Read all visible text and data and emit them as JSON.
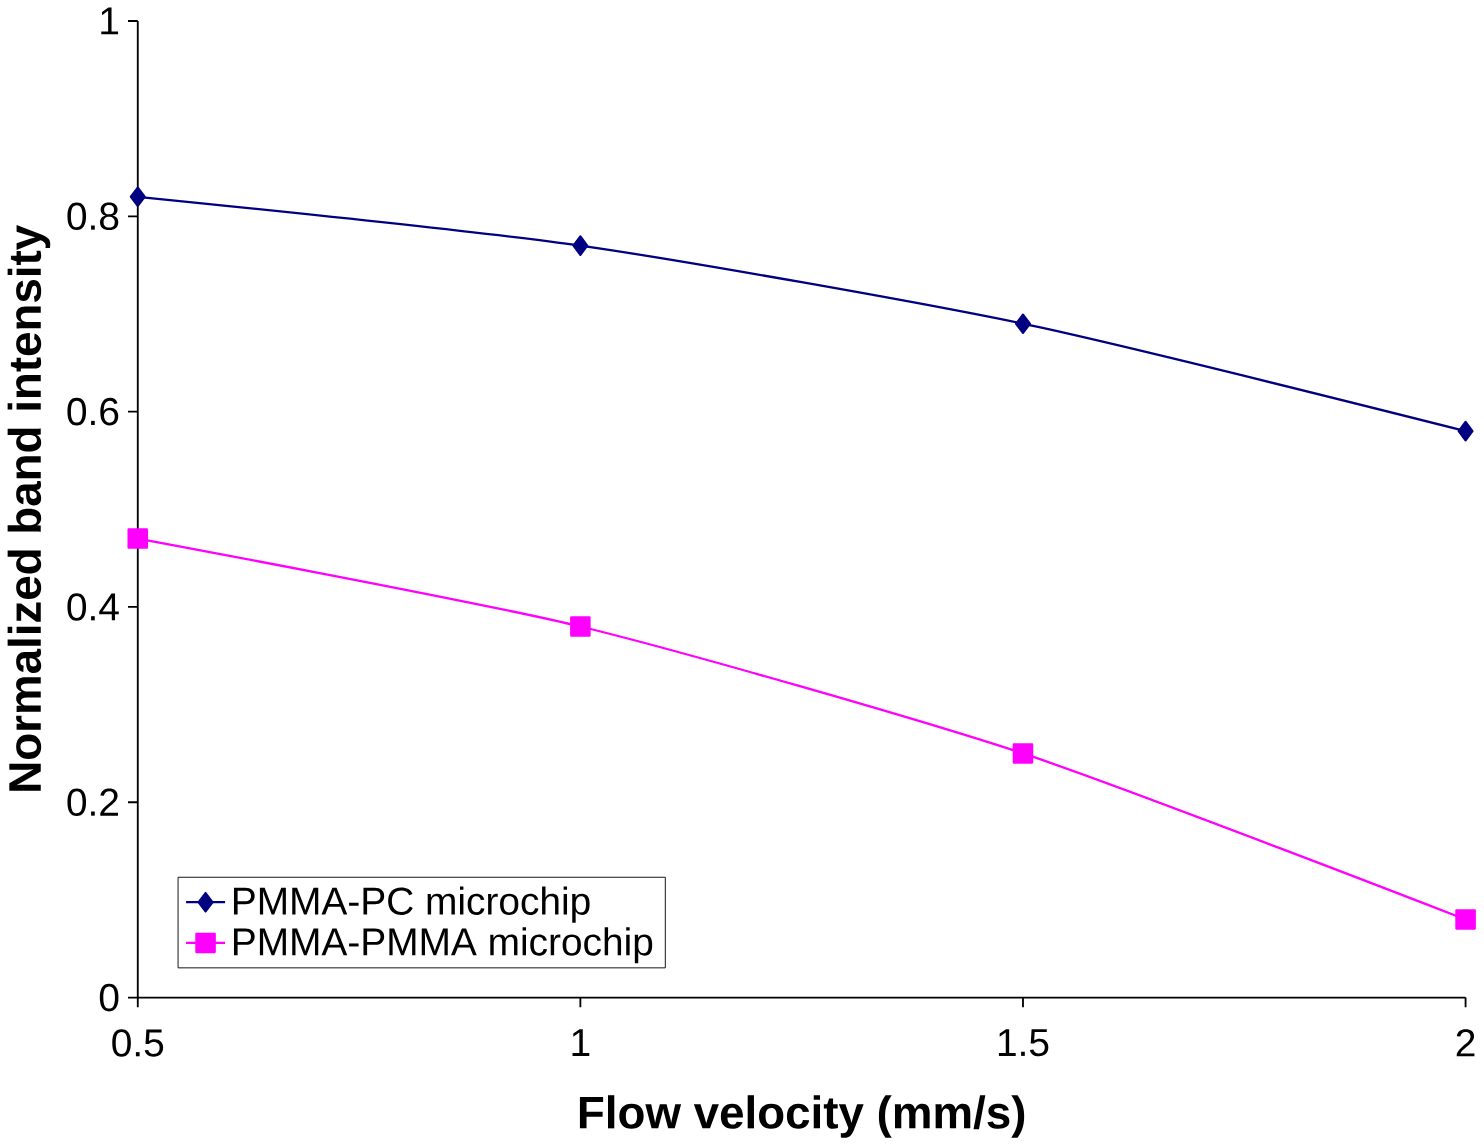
{
  "chart_data": {
    "type": "line",
    "xlabel": "Flow velocity (mm/s)",
    "ylabel": "Normalized band intensity",
    "x": [
      0.5,
      1,
      1.5,
      2
    ],
    "series": [
      {
        "name": "PMMA-PC microchip",
        "color": "#000080",
        "marker": "diamond",
        "values": [
          0.82,
          0.77,
          0.69,
          0.58
        ]
      },
      {
        "name": "PMMA-PMMA microchip",
        "color": "#ff00ff",
        "marker": "square",
        "values": [
          0.47,
          0.38,
          0.25,
          0.08
        ]
      }
    ],
    "xlim": [
      0.5,
      2
    ],
    "xticks": [
      0.5,
      1,
      1.5,
      2
    ],
    "ylim": [
      0,
      1
    ],
    "yticks": [
      0,
      0.2,
      0.4,
      0.6,
      0.8,
      1
    ],
    "grid": false,
    "legend": "bottom left"
  }
}
